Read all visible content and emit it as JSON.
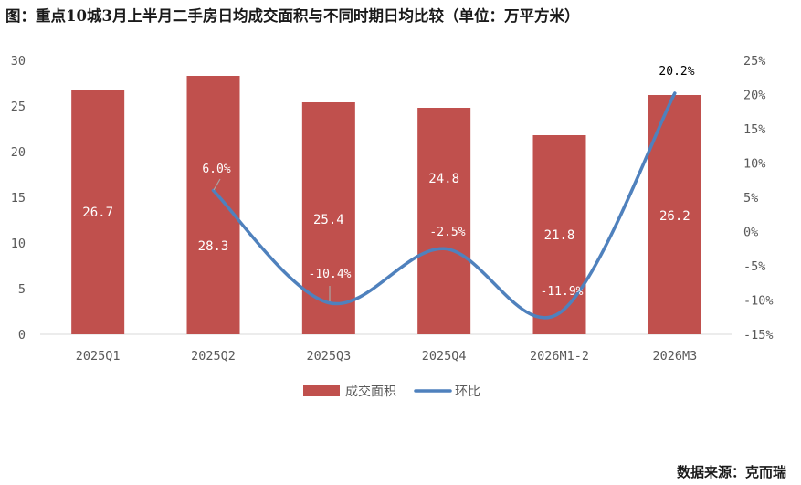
{
  "title": "图：重点10城3月上半月二手房日均成交面积与不同时期日均比较（单位：万平方米）",
  "source": "数据来源：克而瑞",
  "chart_data": {
    "type": "bar",
    "categories": [
      "2025Q1",
      "2025Q2",
      "2025Q3",
      "2025Q4",
      "2026M1-2",
      "2026M3"
    ],
    "series": [
      {
        "name": "成交面积",
        "type": "bar",
        "axis": "left",
        "color": "#c0504d",
        "values": [
          26.7,
          28.3,
          25.4,
          24.8,
          21.8,
          26.2
        ],
        "labels": [
          "26.7",
          "28.3",
          "25.4",
          "24.8",
          "21.8",
          "26.2"
        ]
      },
      {
        "name": "环比",
        "type": "line",
        "axis": "right",
        "color": "#4f81bd",
        "values": [
          null,
          6.0,
          -10.4,
          -2.5,
          -11.9,
          20.2
        ],
        "labels": [
          "",
          "6.0%",
          "-10.4%",
          "-2.5%",
          "-11.9%",
          "20.2%"
        ]
      }
    ],
    "y_left": {
      "min": 0,
      "max": 30,
      "step": 5,
      "ticks": [
        "0",
        "5",
        "10",
        "15",
        "20",
        "25",
        "30"
      ]
    },
    "y_right": {
      "min": -15,
      "max": 25,
      "step": 5,
      "ticks": [
        "-15%",
        "-10%",
        "-5%",
        "0%",
        "5%",
        "10%",
        "15%",
        "20%",
        "25%"
      ]
    },
    "legend": {
      "position": "bottom"
    },
    "grid": false
  }
}
